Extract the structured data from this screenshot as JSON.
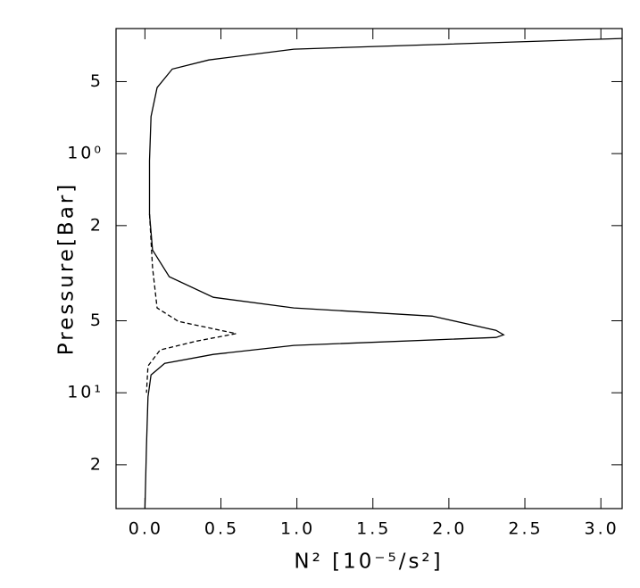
{
  "chart_data": {
    "type": "line",
    "x_label": "N² [10⁻⁵/s²]",
    "y_label": "Pressure[Bar]",
    "xlim": [
      -0.19,
      3.14
    ],
    "xticks": [
      {
        "value": 0,
        "label": "0.0"
      },
      0.5,
      {
        "value": 1,
        "label": "1.0"
      },
      1.5,
      {
        "value": 2,
        "label": "2.0"
      },
      2.5,
      {
        "value": 3,
        "label": "3.0"
      }
    ],
    "ylim": [
      0.3,
      30.5
    ],
    "y_scale": "log",
    "y_inverted": true,
    "yticks": [
      {
        "value": 0.5,
        "label": "5"
      },
      {
        "value": 1,
        "label": "10⁰"
      },
      2,
      5,
      {
        "value": 10,
        "label": "10¹"
      },
      {
        "value": 20,
        "label": "2"
      }
    ],
    "series": [
      {
        "color": "#000000",
        "dash": false,
        "x": [
          3.14,
          0.98,
          0.42,
          0.18,
          0.08,
          0.04,
          0.03,
          0.03,
          0.05,
          0.16,
          0.45,
          0.98,
          1.89,
          2.31,
          2.36,
          2.31,
          0.98,
          0.45,
          0.13,
          0.04,
          0.02,
          0.01,
          0.0
        ],
        "y": [
          0.33,
          0.366,
          0.406,
          0.443,
          0.53,
          0.7,
          1.07,
          1.79,
          2.53,
          3.27,
          3.99,
          4.42,
          4.78,
          5.48,
          5.72,
          5.87,
          6.34,
          6.91,
          7.53,
          8.42,
          10.4,
          16.7,
          30.5
        ]
      },
      {
        "color": "#000000",
        "dash": true,
        "x": [
          0.03,
          0.05,
          0.08,
          0.22,
          0.6,
          0.34,
          0.1,
          0.02,
          0.01
        ],
        "y": [
          1.79,
          3.0,
          4.42,
          5.03,
          5.66,
          6.08,
          6.62,
          7.73,
          10.0
        ]
      }
    ]
  }
}
